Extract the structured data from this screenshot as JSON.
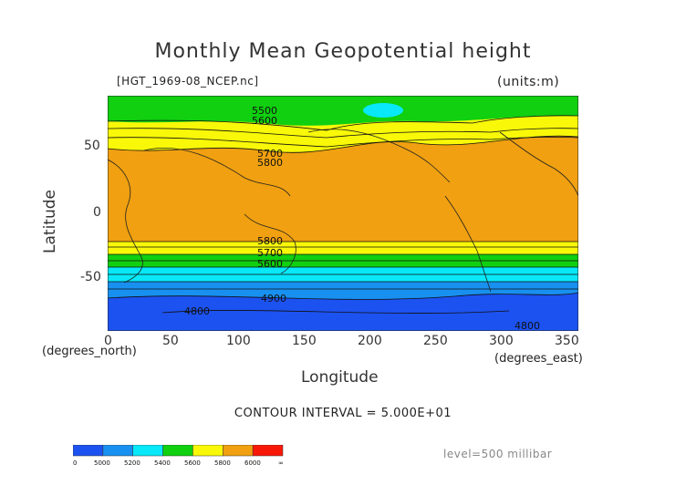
{
  "title": "Monthly Mean Geopotential height",
  "subtitle": "[HGT_1969-08_NCEP.nc]",
  "units": "(units:m)",
  "y_axis": {
    "label": "Latitude",
    "ticks": [
      "50",
      "0",
      "-50"
    ]
  },
  "x_axis": {
    "label": "Longitude",
    "ticks": [
      "0",
      "50",
      "100",
      "150",
      "200",
      "250",
      "300",
      "350"
    ],
    "unit_left": "(degrees_north)",
    "unit_right": "(degrees_east)"
  },
  "contour_interval": "CONTOUR INTERVAL = 5.000E+01",
  "level": "level=500 millibar",
  "legend": {
    "labels": [
      "0",
      "5000",
      "5200",
      "5400",
      "5600",
      "5800",
      "6000",
      "∞"
    ],
    "colors": [
      "#1c52f0",
      "#1890f0",
      "#08e8f8",
      "#10d010",
      "#f8f808",
      "#f0a010",
      "#f81808"
    ]
  },
  "contour_labels": [
    "5500",
    "5600",
    "5700",
    "5800",
    "5800",
    "5700",
    "5600",
    "4900",
    "4800",
    "4800"
  ],
  "colors": {
    "deep_blue": "#1c52f0",
    "blue": "#1890f0",
    "cyan": "#08e8f8",
    "green": "#10d010",
    "yellow": "#f8f808",
    "orange": "#f0a010"
  }
}
